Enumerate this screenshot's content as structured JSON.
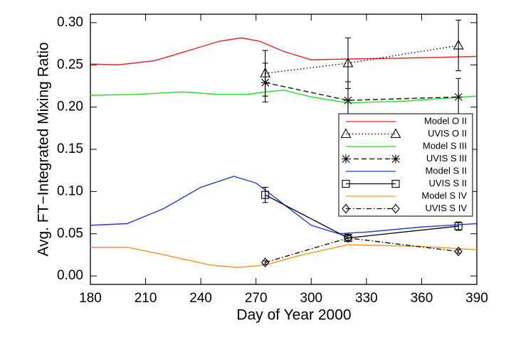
{
  "chart_data": {
    "type": "line",
    "xlabel": "Day of Year 2000",
    "ylabel": "Avg. FT−Integrated Mixing Ratio",
    "xlim": [
      180,
      390
    ],
    "ylim": [
      -0.01,
      0.31
    ],
    "xticks": [
      180,
      210,
      240,
      270,
      300,
      330,
      360,
      390
    ],
    "yticks": [
      {
        "value": 0,
        "label": "0.00"
      },
      {
        "value": 0.05,
        "label": "0.05"
      },
      {
        "value": 0.1,
        "label": "0.10"
      },
      {
        "value": 0.15,
        "label": "0.15"
      },
      {
        "value": 0.2,
        "label": "0.20"
      },
      {
        "value": 0.25,
        "label": "0.25"
      },
      {
        "value": 0.3,
        "label": "0.30"
      }
    ],
    "legend": "right",
    "series": [
      {
        "name": "Model O II",
        "color": "#e8221f",
        "dash": "solid",
        "x": [
          180,
          195,
          215,
          235,
          250,
          262,
          272,
          285,
          300,
          320,
          350,
          390
        ],
        "values": [
          0.251,
          0.25,
          0.255,
          0.268,
          0.278,
          0.282,
          0.278,
          0.266,
          0.256,
          0.257,
          0.258,
          0.26
        ]
      },
      {
        "name": "UVIS O II",
        "color": "#000000",
        "dash": "dotted",
        "marker": "triangle",
        "x": [
          275,
          320,
          380
        ],
        "values": [
          0.24,
          0.252,
          0.273
        ],
        "errors": [
          0.027,
          0.03,
          0.03
        ]
      },
      {
        "name": "Model S III",
        "color": "#22dd22",
        "dash": "solid",
        "x": [
          180,
          205,
          230,
          250,
          265,
          275,
          285,
          300,
          320,
          350,
          390
        ],
        "values": [
          0.214,
          0.215,
          0.218,
          0.215,
          0.215,
          0.218,
          0.22,
          0.212,
          0.205,
          0.207,
          0.213
        ]
      },
      {
        "name": "UVIS S III",
        "color": "#000000",
        "dash": "dashed",
        "marker": "asterisk",
        "x": [
          275,
          320,
          380
        ],
        "values": [
          0.229,
          0.208,
          0.212
        ],
        "errors": [
          0.023,
          0.022,
          0.022
        ]
      },
      {
        "name": "Model S II",
        "color": "#1f3fd6",
        "dash": "solid",
        "x": [
          180,
          200,
          220,
          240,
          258,
          270,
          285,
          300,
          315,
          330,
          360,
          390
        ],
        "values": [
          0.06,
          0.062,
          0.08,
          0.105,
          0.118,
          0.11,
          0.085,
          0.06,
          0.05,
          0.052,
          0.058,
          0.062
        ]
      },
      {
        "name": "UVIS S II",
        "color": "#000000",
        "dash": "solid",
        "marker": "square",
        "x": [
          275,
          320,
          380
        ],
        "values": [
          0.096,
          0.045,
          0.059
        ],
        "errors": [
          0.009,
          0.004,
          0.005
        ]
      },
      {
        "name": "Model S IV",
        "color": "#f5961e",
        "dash": "solid",
        "x": [
          180,
          200,
          220,
          245,
          260,
          275,
          295,
          320,
          360,
          390
        ],
        "values": [
          0.034,
          0.034,
          0.025,
          0.013,
          0.01,
          0.013,
          0.025,
          0.037,
          0.035,
          0.031
        ]
      },
      {
        "name": "UVIS S IV",
        "color": "#000000",
        "dash": "dashdot",
        "marker": "diamond",
        "x": [
          275,
          320,
          380
        ],
        "values": [
          0.016,
          0.045,
          0.029
        ],
        "errors": [
          0.002,
          0.003,
          0.002
        ]
      }
    ]
  }
}
